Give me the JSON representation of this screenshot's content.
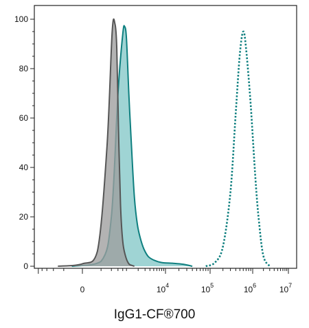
{
  "chart_data": {
    "type": "area",
    "title": "",
    "xlabel": "IgG1-CF®700",
    "ylabel": "",
    "x_scale": "biexponential",
    "xlim": [
      -1000,
      10000000
    ],
    "ylim": [
      0,
      105
    ],
    "grid": false,
    "legend": "none",
    "y_ticks": [
      {
        "value": 0,
        "label": "0"
      },
      {
        "value": 20,
        "label": "20"
      },
      {
        "value": 40,
        "label": "40"
      },
      {
        "value": 60,
        "label": "60"
      },
      {
        "value": 80,
        "label": "80"
      },
      {
        "value": 100,
        "label": "100"
      }
    ],
    "x_ticks": [
      {
        "value": 0,
        "base": "0",
        "exp": ""
      },
      {
        "value": 10000,
        "base": "10",
        "exp": "4"
      },
      {
        "value": 100000,
        "base": "10",
        "exp": "5"
      },
      {
        "value": 1000000,
        "base": "10",
        "exp": "6"
      },
      {
        "value": 10000000,
        "base": "10",
        "exp": "7"
      }
    ],
    "series": [
      {
        "style": "filled-gray",
        "color": "#555555",
        "fill": "#9e9e9e",
        "x": [
          -300,
          0,
          150,
          300,
          420,
          500,
          560,
          620,
          700,
          800,
          950,
          1150,
          1400,
          1600
        ],
        "y": [
          0,
          1,
          6,
          48,
          95,
          98,
          88,
          55,
          25,
          10,
          4,
          1,
          0.3,
          0
        ]
      },
      {
        "style": "filled-teal",
        "color": "#0e7f7f",
        "fill": "#8ecccc",
        "x": [
          -100,
          200,
          400,
          600,
          800,
          900,
          1000,
          1150,
          1350,
          1600,
          1900,
          2300,
          2800,
          3600,
          5000,
          8000,
          15000,
          25000,
          40000
        ],
        "y": [
          0,
          2,
          20,
          70,
          94,
          97,
          92,
          70,
          48,
          28,
          17,
          11,
          7,
          4,
          2.5,
          1.5,
          1.2,
          0.8,
          0
        ]
      },
      {
        "style": "dotted-teal",
        "color": "#0e7f7f",
        "fill": "none",
        "x": [
          80000,
          130000,
          200000,
          300000,
          400000,
          500000,
          600000,
          700000,
          900000,
          1200000,
          1500000,
          2000000,
          3000000
        ],
        "y": [
          0,
          1.5,
          8,
          30,
          62,
          86,
          95,
          88,
          65,
          35,
          18,
          4,
          0
        ]
      }
    ]
  }
}
